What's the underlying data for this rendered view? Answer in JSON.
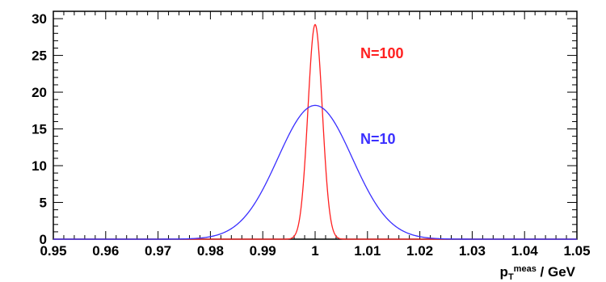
{
  "chart_data": {
    "type": "line",
    "title": "",
    "xlabel": {
      "base": "p",
      "sub": "T",
      "sup": "meas",
      "unit": " / GeV"
    },
    "ylabel": "",
    "xlim": [
      0.95,
      1.05
    ],
    "ylim": [
      0,
      31
    ],
    "xticks": [
      "0.95",
      "0.96",
      "0.97",
      "0.98",
      "0.99",
      "1",
      "1.01",
      "1.02",
      "1.03",
      "1.04",
      "1.05"
    ],
    "yticks": [
      "0",
      "5",
      "10",
      "15",
      "20",
      "25",
      "30"
    ],
    "grid": false,
    "series": [
      {
        "name": "N=100",
        "color": "#ff2020",
        "mean": 1.0,
        "sigma": 0.00137,
        "peak": 29.2
      },
      {
        "name": "N=10",
        "color": "#3a2fff",
        "mean": 1.0,
        "sigma": 0.0071,
        "peak": 18.2
      }
    ]
  }
}
